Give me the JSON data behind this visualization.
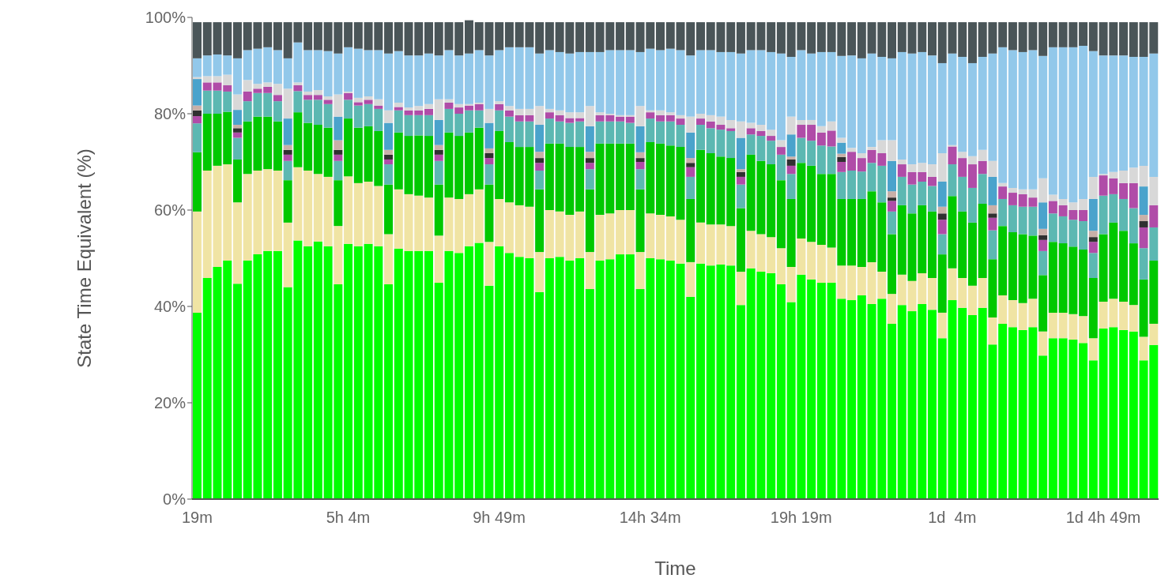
{
  "chart_data": {
    "type": "bar",
    "stacked": true,
    "xlabel": "Time",
    "ylabel": "State Time Equivalent (%)",
    "categories": [
      "19m",
      null,
      null,
      null,
      null,
      null,
      null,
      null,
      null,
      null,
      null,
      null,
      null,
      null,
      null,
      "5h 4m",
      null,
      null,
      null,
      null,
      null,
      null,
      null,
      null,
      null,
      null,
      null,
      null,
      null,
      null,
      "9h 49m",
      null,
      null,
      null,
      null,
      null,
      null,
      null,
      null,
      null,
      null,
      null,
      null,
      null,
      null,
      "14h 34m",
      null,
      null,
      null,
      null,
      null,
      null,
      null,
      null,
      null,
      null,
      null,
      null,
      null,
      null,
      "19h 19m",
      null,
      null,
      null,
      null,
      null,
      null,
      null,
      null,
      null,
      null,
      null,
      null,
      null,
      null,
      "1d  4m",
      null,
      null,
      null,
      null,
      null,
      null,
      null,
      null,
      null,
      null,
      null,
      null,
      null,
      null,
      "1d 4h 49m",
      null,
      null,
      null,
      null,
      null
    ],
    "ylim": [
      0,
      100
    ],
    "yticks": [
      {
        "value": 0,
        "label": "0%"
      },
      {
        "value": 20,
        "label": "20%"
      },
      {
        "value": 40,
        "label": "40%"
      },
      {
        "value": 60,
        "label": "60%"
      },
      {
        "value": 80,
        "label": "80%"
      },
      {
        "value": 100,
        "label": "100%"
      }
    ],
    "series": [
      {
        "color": "#00ff00",
        "values": [
          38.7,
          45.9,
          48.2,
          49.5,
          44.7,
          49.5,
          50.8,
          51.5,
          51.5,
          44,
          53.7,
          52.5,
          53.5,
          52.5,
          44.6,
          53,
          52.5,
          53,
          52.5,
          44.6,
          52,
          51.5,
          51.5,
          51.5,
          44.9,
          51.5,
          51.1,
          52.5,
          53.2,
          44.3,
          52.5,
          51.1,
          50.3,
          50,
          43,
          50,
          50.3,
          49.5,
          50,
          43.6,
          49.5,
          49.8,
          50.8,
          50.8,
          43.6,
          50,
          49.8,
          49.5,
          48.9,
          42,
          48.9,
          48.5,
          48.7,
          48.5,
          40.3,
          47.9,
          47.2,
          46.9,
          44.6,
          40.9,
          46.6,
          45.6,
          44.9,
          44.9,
          41.6,
          41.3,
          42.3,
          40.5,
          41.6,
          36.4,
          40.3,
          39,
          40.5,
          39.3,
          33.4,
          41.3,
          39.7,
          38.2,
          39.7,
          32.1,
          36.4,
          35.7,
          35.1,
          35.7,
          29.8,
          33.4,
          33.4,
          33.1,
          32.4,
          28.8,
          35.4,
          35.7,
          35.1,
          34.8,
          28.8,
          32
        ]
      },
      {
        "color": "#f0e4a4",
        "values": [
          21,
          22.3,
          21,
          20,
          16.9,
          18,
          17.4,
          17,
          16.7,
          13.4,
          15.2,
          15.7,
          14,
          14.4,
          12.1,
          14,
          13.1,
          12.9,
          12.5,
          10.4,
          12.3,
          11.8,
          11.5,
          11.1,
          9.8,
          11.1,
          11.2,
          10.8,
          11.1,
          9.1,
          9.8,
          10.5,
          10.7,
          10.7,
          8.3,
          10,
          9.4,
          9.5,
          9.7,
          7.7,
          9.5,
          9.5,
          9.2,
          9.2,
          7.7,
          9.3,
          9.2,
          9.2,
          9.1,
          7.2,
          8.5,
          8.5,
          8.3,
          8.2,
          6.9,
          7.8,
          7.8,
          7.5,
          7.5,
          7.3,
          7.5,
          7.8,
          7.9,
          7.3,
          6.9,
          7.2,
          5.9,
          8.7,
          5.6,
          6.2,
          6.3,
          6.3,
          6.4,
          6.6,
          5.3,
          6.6,
          6.2,
          6.1,
          6.2,
          5.6,
          5.9,
          5.6,
          5.6,
          5.9,
          5,
          5.3,
          5.3,
          5.3,
          5.6,
          4.6,
          5.6,
          5.9,
          5.9,
          5.5,
          4.9,
          4.4
        ]
      },
      {
        "color": "#00c800",
        "values": [
          12.3,
          11.8,
          10.8,
          10.9,
          8.9,
          10.9,
          11.2,
          10.9,
          10.2,
          8.8,
          11.4,
          9.9,
          10.2,
          10.2,
          9.5,
          12,
          11.5,
          11.5,
          11.4,
          10.3,
          11.8,
          12.1,
          12.5,
          12.8,
          10.6,
          13.5,
          13.1,
          12.8,
          12.8,
          11.9,
          14.1,
          12.5,
          12.1,
          12.4,
          13,
          13.8,
          14.1,
          14.1,
          13.4,
          13,
          14.8,
          14.5,
          13.8,
          13.8,
          13,
          14.8,
          14.8,
          14.7,
          15.1,
          13.1,
          15.1,
          14.8,
          14.1,
          14.1,
          13.2,
          15.8,
          15.2,
          15.1,
          14.1,
          14.1,
          15.7,
          15.8,
          14.7,
          15.3,
          13.8,
          13.8,
          14.1,
          14.7,
          14.4,
          12.4,
          14.4,
          14,
          14.1,
          13.8,
          12.1,
          15,
          13.8,
          13.1,
          15.4,
          12.1,
          14.4,
          14.1,
          14.3,
          13.1,
          11.7,
          14.7,
          14.4,
          14,
          13.8,
          12.5,
          14,
          15.8,
          14.7,
          12.8,
          11.9,
          13.1
        ]
      },
      {
        "color": "#5cb8b2",
        "values": [
          6,
          4.8,
          4.8,
          4.2,
          4.5,
          4.2,
          4.9,
          4.9,
          4.2,
          4,
          4.4,
          4.8,
          5.2,
          4.9,
          4,
          3.9,
          4.6,
          4.6,
          4.6,
          4.2,
          4.6,
          4.3,
          4.2,
          4.3,
          4.9,
          4.9,
          4.6,
          4.6,
          3.6,
          4.2,
          4.3,
          5.3,
          5.3,
          5.3,
          3.9,
          5.2,
          4.6,
          5,
          5.3,
          4.2,
          4.6,
          4.6,
          4.6,
          4.3,
          4.2,
          4.9,
          4.6,
          5,
          4.6,
          4.6,
          5.2,
          5.2,
          5.6,
          5.6,
          4.9,
          4.2,
          5.2,
          4.9,
          5.3,
          5.2,
          5.2,
          5.2,
          5.9,
          5.7,
          5.6,
          5.9,
          5.7,
          5.9,
          7.6,
          4.7,
          5.9,
          6,
          4.9,
          5.3,
          4.2,
          6.6,
          7.2,
          7.2,
          6.2,
          6,
          5.6,
          5.6,
          5.7,
          6,
          5,
          5.9,
          5.6,
          5.6,
          5.9,
          5.2,
          8,
          5.9,
          6.6,
          7.3,
          6.5,
          6.9
        ]
      },
      {
        "color": "#b04ca8",
        "values": [
          1.5,
          1.7,
          1.7,
          1.3,
          1.1,
          2,
          0.9,
          1.3,
          1.3,
          1.3,
          1.2,
          1,
          1,
          0.9,
          1.3,
          1.4,
          0.7,
          0.9,
          0.7,
          1,
          0.7,
          1,
          1,
          1.3,
          1.3,
          1.3,
          1.3,
          1,
          1.3,
          1.3,
          1.3,
          1.3,
          1.3,
          1.3,
          1.6,
          1.3,
          1.3,
          1,
          0.7,
          1.3,
          1.3,
          1.3,
          1,
          1.3,
          1.5,
          1.3,
          1.3,
          1.3,
          1.3,
          2,
          1.3,
          1.4,
          1,
          0.6,
          1.6,
          1.3,
          1,
          1,
          1.6,
          1.7,
          2.7,
          3.3,
          2.7,
          3.3,
          2.1,
          3.9,
          2.8,
          2.7,
          2.6,
          2.2,
          2.6,
          2.6,
          2,
          1.9,
          3,
          3.7,
          3.9,
          4.9,
          2.7,
          2.6,
          2.6,
          2.6,
          2.6,
          1.9,
          2.3,
          2.6,
          2.3,
          2,
          2.3,
          2.3,
          4.2,
          3.3,
          3.3,
          5.2,
          4.3,
          4.6
        ]
      },
      {
        "color": "#303030",
        "values": [
          1.2,
          0,
          0,
          0,
          0.9,
          0,
          0,
          0,
          0,
          1,
          0,
          0,
          0,
          0,
          1,
          0,
          0,
          0,
          0,
          1,
          0,
          0,
          0,
          0,
          1,
          0,
          0,
          0,
          0,
          1,
          0,
          0,
          0,
          0,
          1,
          0,
          0,
          0,
          0,
          1,
          0,
          0,
          0,
          0,
          0.8,
          0,
          0,
          0,
          0,
          0.9,
          0,
          0,
          0,
          0,
          1,
          0,
          0,
          0,
          0,
          1.3,
          0,
          0,
          0,
          0,
          1,
          0,
          0,
          0,
          0,
          0.7,
          0,
          0,
          0,
          0,
          1.3,
          0,
          0,
          0,
          0,
          0.9,
          0,
          0,
          0,
          0,
          1,
          0,
          0,
          0,
          0,
          1,
          0,
          0,
          0,
          0,
          1.3,
          0
        ]
      },
      {
        "color": "#c8b0a8",
        "values": [
          1,
          0,
          0,
          0,
          0.7,
          0,
          0,
          0,
          0,
          1,
          0,
          0,
          0,
          0,
          2,
          0,
          0,
          0,
          0,
          1,
          0,
          0,
          0,
          0,
          1,
          0,
          0,
          0,
          0,
          1,
          0,
          0,
          0,
          0,
          1.3,
          0,
          0,
          0,
          0,
          1.3,
          0,
          0,
          0,
          0,
          1.2,
          0,
          0,
          0,
          0,
          1,
          0,
          0,
          0,
          0,
          0.6,
          0,
          0,
          0,
          0,
          0.6,
          0,
          0,
          0,
          0,
          0.7,
          0,
          0,
          0,
          0,
          1.3,
          0,
          0,
          0,
          0,
          1.4,
          0,
          0,
          0,
          0,
          1.7,
          0,
          0,
          0,
          0,
          1.3,
          0,
          0,
          0,
          0,
          1.3,
          0,
          0,
          0,
          0,
          1.3,
          0
        ]
      },
      {
        "color": "#4aa3cc",
        "values": [
          5.5,
          0,
          0,
          0,
          3.1,
          0,
          0,
          0,
          0,
          5.5,
          0,
          0,
          0,
          0,
          4.9,
          0,
          0,
          0,
          0,
          5.6,
          0,
          0,
          0,
          0,
          5.2,
          0,
          0,
          0,
          0,
          5.3,
          0,
          0,
          0,
          0,
          5.6,
          0,
          0,
          0,
          0,
          5.3,
          0,
          0,
          0,
          0,
          5.4,
          0,
          0,
          0,
          0,
          5.3,
          0,
          0,
          0,
          0,
          6.5,
          0,
          0,
          0,
          0,
          4.6,
          0,
          0,
          0,
          0,
          2.3,
          0,
          0,
          0,
          0,
          6.3,
          0,
          0,
          0,
          0,
          5.2,
          0,
          0,
          0,
          0,
          5.9,
          0,
          0,
          0,
          0,
          5.5,
          0,
          0,
          0,
          0,
          6.6,
          0,
          0,
          0,
          0,
          5.9,
          0
        ]
      },
      {
        "color": "#d8d8d8",
        "values": [
          0.4,
          1.3,
          1.3,
          2.2,
          3.2,
          2.4,
          1,
          0.9,
          2.3,
          6.2,
          0.6,
          0.7,
          1,
          0.7,
          4.6,
          0.3,
          0.9,
          0.7,
          1.3,
          2.6,
          0.9,
          0.6,
          0.9,
          1,
          4.3,
          0.7,
          0.7,
          0.3,
          0.3,
          2.9,
          0.6,
          0.9,
          1.3,
          1.3,
          3.9,
          0.7,
          1,
          1.2,
          1.2,
          4.2,
          0.6,
          0.3,
          0.3,
          0.3,
          4.2,
          0.4,
          1,
          0.6,
          0.7,
          3.3,
          1,
          1.3,
          1.7,
          1.7,
          3.4,
          1.1,
          1.3,
          1.3,
          1.4,
          3.7,
          1,
          1,
          1.3,
          1.9,
          1,
          0.8,
          1,
          0.6,
          2.7,
          4.3,
          1,
          1.6,
          1.9,
          2.6,
          5.9,
          0.3,
          1.3,
          1.7,
          2.3,
          3.3,
          0.7,
          1,
          1,
          1.7,
          5,
          1.3,
          1.3,
          1.6,
          2.3,
          4.6,
          0.3,
          1.3,
          2.6,
          3.2,
          4.3,
          5.9
        ]
      },
      {
        "color": "#92c8ea",
        "values": [
          3.9,
          4.3,
          4.5,
          4,
          7.5,
          6.2,
          7.3,
          7.3,
          7,
          6.3,
          8.3,
          8.6,
          8.3,
          9.4,
          8.5,
          9.2,
          10.2,
          9.6,
          10.2,
          11.8,
          10.7,
          10.8,
          10.5,
          10.5,
          9.1,
          10.2,
          10.1,
          10.5,
          10.9,
          11.1,
          10.6,
          12.2,
          12.8,
          12.8,
          10.9,
          12.2,
          12.1,
          12.2,
          12.5,
          11.2,
          12.5,
          13.2,
          13.5,
          13.5,
          11.2,
          12.8,
          12.5,
          13.2,
          13.5,
          12.7,
          13.2,
          13.5,
          13.4,
          14.1,
          14.1,
          15.1,
          15.5,
          16.1,
          18,
          12.4,
          14.5,
          13.8,
          15.4,
          14.4,
          17,
          19.2,
          19.7,
          19.4,
          17.3,
          17,
          22.3,
          23,
          23,
          22.6,
          18.7,
          19,
          19.7,
          19.3,
          19.3,
          22.3,
          28.2,
          28.6,
          28.5,
          28.9,
          25.4,
          30.6,
          31.5,
          32.2,
          31.8,
          26.1,
          24.6,
          24.2,
          23.9,
          23,
          22.6,
          25.6
        ]
      },
      {
        "color": "#4a5558",
        "values": [
          7.5,
          6.9,
          6.7,
          6.9,
          7.5,
          5.8,
          5.5,
          5.2,
          5.8,
          7.5,
          4.2,
          5.8,
          5.8,
          6,
          6.5,
          5.2,
          5.5,
          5.8,
          5.8,
          6.5,
          6,
          6.9,
          6.9,
          6.5,
          6.9,
          5.8,
          6.9,
          6.9,
          5.8,
          6.9,
          5.8,
          5.2,
          5.2,
          5.2,
          6.5,
          5.8,
          6.2,
          6.5,
          6.2,
          6.2,
          6.2,
          5.8,
          5.8,
          5.8,
          6.2,
          5.5,
          5.8,
          5.5,
          5.8,
          6.9,
          5.8,
          5.8,
          6.2,
          6.2,
          6.5,
          5.8,
          5.8,
          6.2,
          6.5,
          7.2,
          5.8,
          6.5,
          6.2,
          6.2,
          7,
          6.9,
          7.5,
          6.5,
          7.2,
          7.5,
          6.2,
          6.5,
          6.2,
          6.9,
          8.5,
          6.5,
          7.2,
          8.5,
          7.2,
          6.5,
          5.2,
          5.8,
          6.2,
          5.8,
          7,
          5.2,
          5.2,
          5.2,
          4.9,
          6,
          6.9,
          6.9,
          6.9,
          7.2,
          7.2,
          6.5
        ]
      }
    ]
  }
}
